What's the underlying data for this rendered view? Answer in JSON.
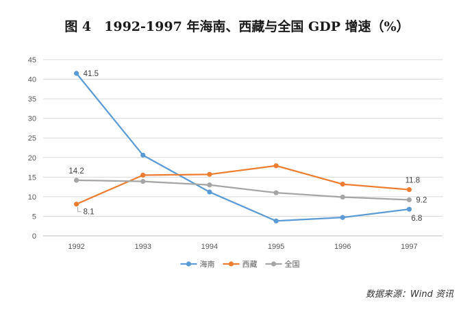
{
  "chart_data": {
    "type": "line",
    "title": "图 4　1992-1997 年海南、西藏与全国 GDP 增速（%）",
    "categories": [
      "1992",
      "1993",
      "1994",
      "1995",
      "1996",
      "1997"
    ],
    "xlabel": "",
    "ylabel": "",
    "ylim": [
      0,
      45
    ],
    "yticks": [
      "0",
      "5",
      "10",
      "15",
      "20",
      "25",
      "30",
      "35",
      "40",
      "45"
    ],
    "grid": true,
    "legend_position": "bottom",
    "series": [
      {
        "name": "海南",
        "color": "#5b9bd5",
        "values": [
          41.5,
          20.6,
          11.2,
          3.8,
          4.7,
          6.8
        ],
        "labels": [
          "41.5",
          "",
          "",
          "",
          "",
          "6.8"
        ]
      },
      {
        "name": "西藏",
        "color": "#ed7d31",
        "values": [
          8.1,
          15.5,
          15.7,
          17.9,
          13.2,
          11.8
        ],
        "labels": [
          "8.1",
          "",
          "",
          "",
          "",
          "11.8"
        ]
      },
      {
        "name": "全国",
        "color": "#a5a5a5",
        "values": [
          14.2,
          13.9,
          13.0,
          11.0,
          9.9,
          9.2
        ],
        "labels": [
          "14.2",
          "",
          "",
          "",
          "",
          "9.2"
        ]
      }
    ],
    "source": "数据来源：Wind 资讯"
  }
}
